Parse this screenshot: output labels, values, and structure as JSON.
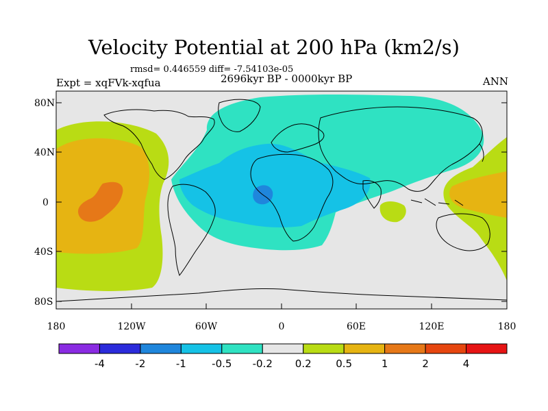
{
  "title": "Velocity Potential at 200 hPa (km2/s)",
  "stats": "rmsd= 0.446559  diff= -7.54103e-05",
  "expt": "Expt = xqFVk-xqfua",
  "period": "2696kyr BP - 0000kyr BP",
  "season": "ANN",
  "y_axis": {
    "ticks": [
      "80N",
      "40N",
      "0",
      "40S",
      "80S"
    ]
  },
  "x_axis": {
    "ticks": [
      "180",
      "120W",
      "60W",
      "0",
      "60E",
      "120E",
      "180"
    ]
  },
  "colorbar": {
    "labels": [
      "-4",
      "-2",
      "-1",
      "-0.5",
      "-0.2",
      "0.2",
      "0.5",
      "1",
      "2",
      "4"
    ],
    "colors": [
      "#8a2be2",
      "#2b2bdb",
      "#1f86dc",
      "#15c2e6",
      "#2fe2c2",
      "#e6e6e6",
      "#b9dc14",
      "#e6b412",
      "#e67818",
      "#e6460f",
      "#e61414"
    ]
  },
  "map_colors": {
    "background": "#e6e6e6",
    "neg_half": "#2fe2c2",
    "neg_one": "#15c2e6",
    "neg_two": "#1f86dc",
    "pos_half": "#b9dc14",
    "pos_one": "#e6b412",
    "pos_two": "#e67818"
  }
}
